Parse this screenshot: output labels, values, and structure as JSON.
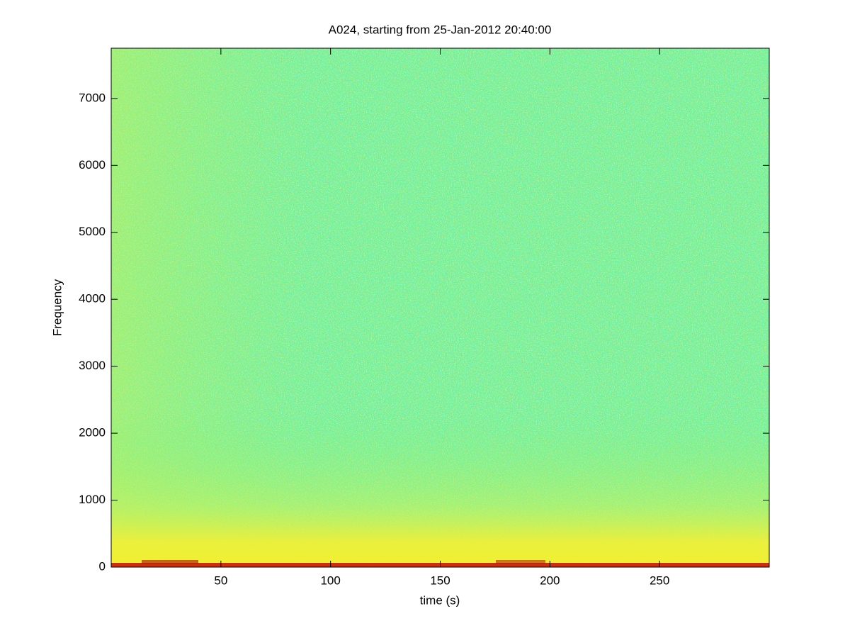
{
  "chart_data": {
    "type": "spectrogram",
    "title": "A024, starting from 25-Jan-2012 20:40:00",
    "x_label": "time (s)",
    "y_label": "Frequency",
    "xlim": [
      0,
      300
    ],
    "xticks": [
      50,
      100,
      150,
      200,
      250
    ],
    "ylim": [
      0,
      7750
    ],
    "yticks": [
      0,
      1000,
      2000,
      3000,
      4000,
      5000,
      6000,
      7000
    ],
    "grid": false
  }
}
